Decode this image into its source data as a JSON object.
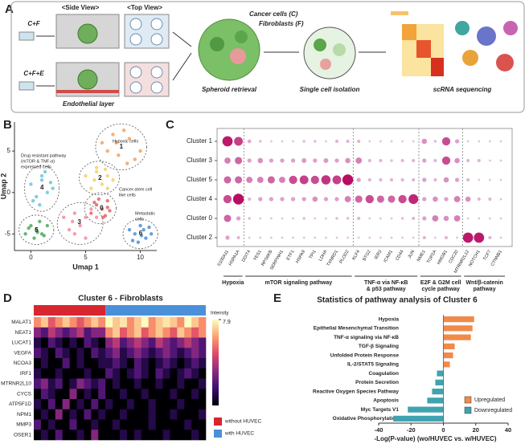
{
  "panel_a": {
    "label": "A",
    "groups": [
      "C+F",
      "C+F+E"
    ],
    "side_view": "<Side View>",
    "top_view": "<Top View>",
    "cancer_cells": "Cancer cells (C)",
    "fibroblasts": "Fibroblasts (F)",
    "endothelial": "Endothelial layer",
    "steps": [
      "Spheroid retrieval",
      "Single cell isolation",
      "scRNA sequencing"
    ]
  },
  "chart_data": [
    {
      "type": "scatter",
      "panel": "B",
      "xlabel": "Umap 1",
      "ylabel": "Umap 2",
      "xlim": [
        -1.5,
        11.5
      ],
      "ylim": [
        -7,
        8.5
      ],
      "xticks": [
        0,
        5,
        10
      ],
      "yticks": [
        -5,
        0,
        5
      ],
      "series": [
        {
          "name": "1",
          "color": "#f4a15d",
          "x": [
            6.5,
            7.5,
            8.5,
            9,
            10,
            8,
            7,
            9.5,
            8.8,
            7.8
          ],
          "y": [
            6,
            7,
            7.5,
            6.5,
            5,
            4.5,
            5,
            4,
            3.5,
            6
          ]
        },
        {
          "name": "2",
          "color": "#f2d16b",
          "x": [
            5,
            6,
            7,
            6.5,
            5.5,
            7.5,
            6,
            7,
            5.8,
            6.8
          ],
          "y": [
            2,
            2.5,
            2,
            1,
            0.5,
            1.5,
            3,
            0.5,
            1.5,
            2.8
          ]
        },
        {
          "name": "3",
          "color": "#ef8ea0",
          "x": [
            3,
            4,
            5,
            4.5,
            3.5,
            5.5,
            4,
            6,
            5,
            3.8
          ],
          "y": [
            -3,
            -2.5,
            -3,
            -4,
            -4.5,
            -2,
            -5,
            -3,
            -5.5,
            -3.5
          ]
        },
        {
          "name": "4",
          "color": "#6cc6d8",
          "x": [
            0,
            1,
            1.5,
            0.5,
            2,
            1,
            0.2,
            1.8,
            0.8,
            1.3
          ],
          "y": [
            1,
            1.5,
            0,
            -0.5,
            0.5,
            2,
            -1,
            1.2,
            -1.5,
            2.5
          ]
        },
        {
          "name": "5",
          "color": "#52a85a",
          "x": [
            0,
            0.5,
            1,
            -0.5,
            1.5,
            0.3,
            0.8,
            1.2,
            -0.2,
            0.6
          ],
          "y": [
            -4,
            -4.5,
            -5,
            -5,
            -4,
            -5.5,
            -3.5,
            -5.2,
            -4.3,
            -4.8
          ]
        },
        {
          "name": "6",
          "color": "#4f8fd0",
          "x": [
            9,
            9.5,
            10,
            10.5,
            11,
            9.8,
            10.3,
            9.3,
            10.8,
            10.1
          ],
          "y": [
            -4.5,
            -5,
            -4,
            -5.5,
            -5,
            -6,
            -4.5,
            -5.8,
            -4.2,
            -5.2
          ]
        },
        {
          "name": "0",
          "color": "#e06666",
          "x": [
            6,
            6.5,
            7,
            5.5,
            6.8,
            6.2,
            7.2,
            5.8,
            6.6,
            7
          ],
          "y": [
            -1.5,
            -2,
            -1,
            -2.5,
            -2.8,
            -0.8,
            -2.2,
            -1.2,
            -3,
            -1.8
          ]
        }
      ],
      "annotations": [
        [
          "Hypoxic cells"
        ],
        [
          "Cancer-stem cell",
          "like cells"
        ],
        [
          "Metastatic",
          "cells"
        ],
        [
          "Drug resistant pathway",
          "(mTOR & TNF-α)",
          "expressed cells"
        ]
      ]
    },
    {
      "type": "dot",
      "panel": "C",
      "groups": [
        {
          "name": [
            "Hypoxia"
          ],
          "genes": [
            "S100A11",
            "HSPA1A"
          ]
        },
        {
          "name": [
            "mTOR signaling pathway"
          ],
          "genes": [
            "DDIT4",
            "YES1",
            "RPS6KB",
            "SERPINH1",
            "ETF1",
            "HSPA9",
            "TPI1",
            "LDHA",
            "TXNRD1",
            "PLOD2"
          ]
        },
        {
          "name": [
            "TNF-α via NF-κB",
            "& p53 pathway"
          ],
          "genes": [
            "KLF4",
            "BTG2",
            "IER3",
            "ICAM1",
            "CD44",
            "JUN"
          ]
        },
        {
          "name": [
            "E2F & G2M cell",
            "cycle pathway"
          ],
          "genes": [
            "NME1",
            "TOP2A",
            "HMGB1",
            "CDC20"
          ]
        },
        {
          "name": [
            "Wnt/β-catenin",
            "pathway"
          ],
          "genes": [
            "MTRNR2L12",
            "NOTCH1",
            "TCF7",
            "CTNNB1"
          ]
        }
      ],
      "series": [
        {
          "name": "Cluster 1",
          "values": [
            0.9,
            0.75,
            0.25,
            0.15,
            0.1,
            0.1,
            0.1,
            0.15,
            0.15,
            0.1,
            0.2,
            0.2,
            0.2,
            0.1,
            0.1,
            0.1,
            0.1,
            0.1,
            0.4,
            0.15,
            0.7,
            0.3,
            0.1,
            0.1,
            0.1,
            0.1
          ]
        },
        {
          "name": "Cluster 3",
          "values": [
            0.5,
            0.6,
            0.3,
            0.4,
            0.3,
            0.3,
            0.3,
            0.35,
            0.3,
            0.35,
            0.3,
            0.4,
            0.5,
            0.2,
            0.2,
            0.15,
            0.2,
            0.2,
            0.3,
            0.2,
            0.7,
            0.4,
            0.2,
            0.2,
            0.1,
            0.1
          ]
        },
        {
          "name": "Cluster 5",
          "values": [
            0.6,
            0.6,
            0.5,
            0.5,
            0.6,
            0.5,
            0.7,
            0.75,
            0.7,
            0.8,
            0.75,
            0.95,
            0.3,
            0.2,
            0.2,
            0.2,
            0.2,
            0.2,
            0.3,
            0.2,
            0.4,
            0.3,
            0.2,
            0.1,
            0.1,
            0.1
          ]
        },
        {
          "name": "Cluster 4",
          "values": [
            0.7,
            0.95,
            0.2,
            0.3,
            0.3,
            0.3,
            0.3,
            0.3,
            0.4,
            0.3,
            0.3,
            0.5,
            0.6,
            0.7,
            0.6,
            0.6,
            0.7,
            0.85,
            0.3,
            0.4,
            0.3,
            0.5,
            0.4,
            0.2,
            0.2,
            0.1
          ]
        },
        {
          "name": "Cluster 0",
          "values": [
            0.6,
            0.3,
            0.15,
            0.1,
            0.1,
            0.1,
            0.1,
            0.15,
            0.1,
            0.1,
            0.15,
            0.15,
            0.2,
            0.1,
            0.1,
            0.1,
            0.15,
            0.2,
            0.3,
            0.5,
            0.4,
            0.5,
            0.1,
            0.1,
            0.1,
            0.1
          ]
        },
        {
          "name": "Cluster 2",
          "values": [
            0.3,
            0.2,
            0.1,
            0.1,
            0.1,
            0.1,
            0.1,
            0.1,
            0.1,
            0.1,
            0.1,
            0.1,
            0.1,
            0.1,
            0.1,
            0.1,
            0.1,
            0.1,
            0.2,
            0.1,
            0.2,
            0.1,
            0.9,
            0.9,
            0.2,
            0.1
          ]
        }
      ]
    },
    {
      "type": "heatmap",
      "panel": "D",
      "title": "Cluster 6 - Fibroblasts",
      "rows": [
        "MALAT1",
        "NEAT1",
        "LUCAT1",
        "VEGFA",
        "NCOA3",
        "IRF1",
        "MTRNR2L10",
        "CYCS",
        "ATP5F1D",
        "NPM1",
        "MMP3",
        "OSER1"
      ],
      "zlabel": "Intensity",
      "zlim": [
        0,
        7.9
      ],
      "zticks": [
        7.9
      ],
      "series": [
        {
          "name": "without HUVEC",
          "color": "#d7262f",
          "values": [
            [
              6,
              7,
              5,
              6,
              7,
              6,
              5,
              6,
              7,
              6
            ],
            [
              3,
              2,
              4,
              3,
              2,
              3,
              4,
              2,
              3,
              3
            ],
            [
              1,
              0,
              2,
              1,
              0,
              1,
              0,
              2,
              1,
              0
            ],
            [
              2,
              1,
              0,
              2,
              1,
              0,
              1,
              0,
              2,
              1
            ],
            [
              0,
              1,
              0,
              0,
              2,
              0,
              1,
              0,
              0,
              1
            ],
            [
              1,
              0,
              0,
              1,
              0,
              0,
              0,
              1,
              0,
              0
            ],
            [
              2,
              3,
              1,
              2,
              0,
              1,
              3,
              2,
              1,
              2
            ],
            [
              0,
              2,
              1,
              0,
              0,
              3,
              0,
              1,
              0,
              2
            ],
            [
              1,
              0,
              2,
              0,
              3,
              0,
              1,
              0,
              2,
              0
            ],
            [
              0,
              1,
              0,
              3,
              0,
              1,
              0,
              2,
              0,
              1
            ],
            [
              2,
              0,
              1,
              0,
              0,
              2,
              0,
              0,
              1,
              0
            ],
            [
              0,
              1,
              0,
              2,
              0,
              0,
              1,
              0,
              3,
              0
            ]
          ]
        },
        {
          "name": "with HUVEC",
          "color": "#4a90d9",
          "values": [
            [
              7.9,
              7,
              7.5,
              6,
              7,
              7.9,
              6,
              7,
              7.5,
              7,
              6,
              7.9,
              7,
              6
            ],
            [
              6,
              7,
              5,
              6,
              7,
              5,
              6,
              7,
              6,
              5,
              7,
              6,
              5,
              6
            ],
            [
              3,
              4,
              2,
              3,
              4,
              3,
              2,
              4,
              3,
              2,
              3,
              4,
              3,
              2
            ],
            [
              2,
              3,
              1,
              2,
              3,
              2,
              1,
              2,
              3,
              2,
              1,
              2,
              3,
              2
            ],
            [
              1,
              2,
              1,
              0,
              2,
              1,
              0,
              1,
              2,
              1,
              0,
              1,
              2,
              1
            ],
            [
              2,
              1,
              0,
              1,
              2,
              1,
              0,
              2,
              1,
              0,
              1,
              2,
              1,
              0
            ],
            [
              0,
              1,
              0,
              0,
              1,
              0,
              0,
              1,
              0,
              0,
              1,
              0,
              0,
              1
            ],
            [
              0,
              0,
              1,
              0,
              0,
              1,
              0,
              0,
              0,
              1,
              0,
              0,
              1,
              0
            ],
            [
              1,
              0,
              0,
              1,
              0,
              0,
              1,
              0,
              0,
              0,
              1,
              0,
              0,
              0
            ],
            [
              0,
              0,
              1,
              0,
              0,
              0,
              1,
              0,
              0,
              1,
              0,
              0,
              0,
              1
            ],
            [
              0,
              1,
              0,
              0,
              0,
              0,
              1,
              0,
              0,
              0,
              0,
              1,
              0,
              0
            ],
            [
              0,
              0,
              1,
              0,
              1,
              0,
              0,
              0,
              1,
              0,
              0,
              0,
              1,
              0
            ]
          ]
        }
      ]
    },
    {
      "type": "hbar",
      "panel": "E",
      "title": "Statistics of pathway analysis of Cluster 6",
      "xlabel": "-Log(P-value) (wo/HUVEC vs. w/HUVEC)",
      "categories": [
        "Hypoxia",
        "Epithelial Mesenchymal Transition",
        "TNF-α signaling via NF-κB",
        "TGF-β Signaling",
        "Unfolded Protein Response",
        "IL-2/STAT5 Signaling",
        "Coagulation",
        "Protein Secretion",
        "Reactive Oxygen Species Pathway",
        "Apoptosis",
        "Myc Targets V1",
        "Oxidative Phosphorylation"
      ],
      "xlim": [
        -40,
        40
      ],
      "xticks": [
        -40,
        -20,
        0,
        20,
        40
      ],
      "legend": "lower right",
      "series": [
        {
          "name": "Upregulated",
          "color": "#f08a4b",
          "values": [
            19,
            18,
            17,
            7,
            6,
            4,
            null,
            null,
            null,
            null,
            null,
            null
          ]
        },
        {
          "name": "Downregulated",
          "color": "#3fa3b0",
          "values": [
            null,
            null,
            null,
            null,
            null,
            null,
            -4,
            -5,
            -7,
            -10,
            -22,
            -31
          ]
        }
      ]
    }
  ]
}
